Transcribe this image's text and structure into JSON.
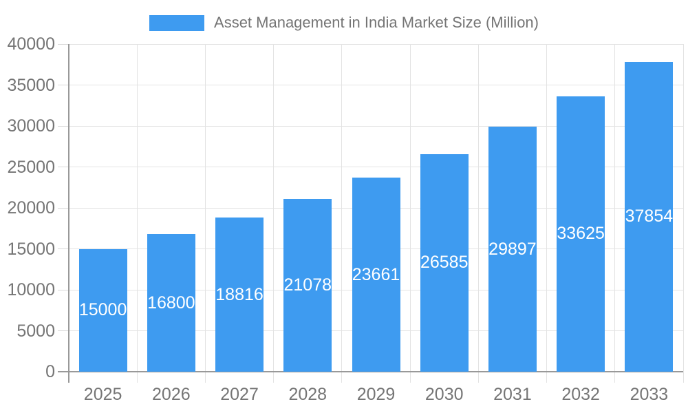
{
  "chart_data": {
    "type": "bar",
    "title": "Asset Management in India Market Size (Million)",
    "series_name": "Asset Management in India Market Size (Million)",
    "categories": [
      "2025",
      "2026",
      "2027",
      "2028",
      "2029",
      "2030",
      "2031",
      "2032",
      "2033"
    ],
    "values": [
      15000,
      16800,
      18816,
      21078,
      23661,
      26585,
      29897,
      33625,
      37854
    ],
    "bar_labels": [
      "15000",
      "16800",
      "18816",
      "21078",
      "23661",
      "26585",
      "29897",
      "33625",
      "37854"
    ],
    "xlabel": "",
    "ylabel": "",
    "ylim": [
      0,
      40000
    ],
    "y_tick_step": 5000,
    "y_tick_labels": [
      "0",
      "5000",
      "10000",
      "15000",
      "20000",
      "25000",
      "30000",
      "35000",
      "40000"
    ],
    "grid": true,
    "legend_position": "top-center",
    "bar_label_position": "inside-center",
    "colors": {
      "bar": "#3E9BF0",
      "bar_label": "#FFFFFF",
      "axis_line": "#999999",
      "tick_line": "#D9D9D9",
      "grid_line": "#E3E3E3",
      "axis_text": "#757575",
      "legend_text": "#757575",
      "background": "#FFFFFF"
    }
  }
}
